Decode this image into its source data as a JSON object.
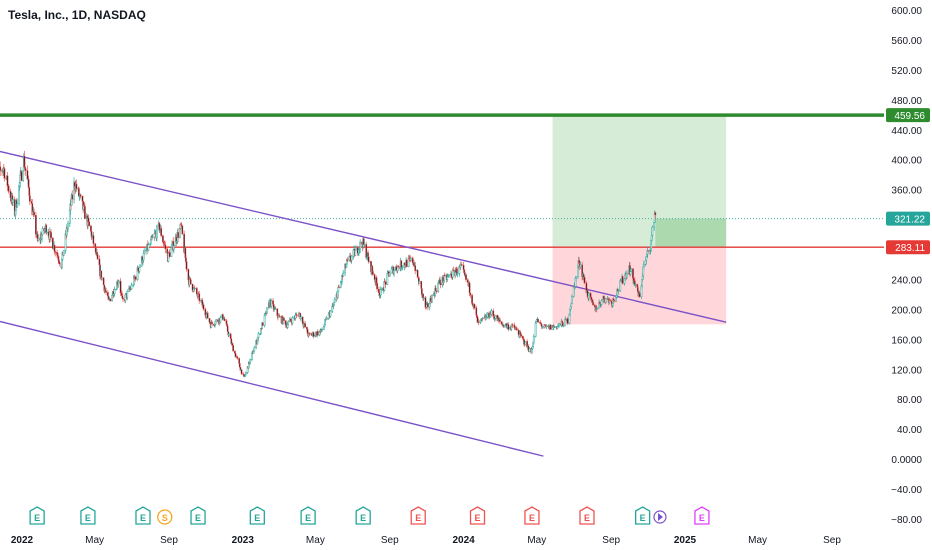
{
  "header": {
    "symbol_title": "Tesla, Inc., 1D, NASDAQ"
  },
  "colors": {
    "up_candle": "#26a69a",
    "down_candle": "#ef5350",
    "candle_body_up": "#ffffff",
    "candle_body_down": "#131722",
    "target_line": "#2e8b2e",
    "entry_line": "#e53935",
    "channel_line": "#7b52c7",
    "profit_zone": "#c8e6c9",
    "profit_zone_strong": "#a5d6a7",
    "loss_zone": "#ffcdd2",
    "earnings_green": "#26a69a",
    "earnings_red": "#ef5350",
    "earnings_magenta": "#e040fb",
    "split_orange": "#f5a623",
    "axis_text": "#131722"
  },
  "chart_data": {
    "type": "candlestick",
    "title": "Tesla, Inc., 1D, NASDAQ",
    "ylim": [
      -80,
      600
    ],
    "y_ticks": [
      "600.00",
      "560.00",
      "520.00",
      "480.00",
      "440.00",
      "400.00",
      "360.00",
      "320.00",
      "280.00",
      "240.00",
      "200.00",
      "160.00",
      "120.00",
      "80.00",
      "40.00",
      "0.0000",
      "−40.00",
      "−80.00"
    ],
    "x_ticks": [
      "2022",
      "May",
      "Sep",
      "2023",
      "May",
      "Sep",
      "2024",
      "May",
      "Sep",
      "2025",
      "May",
      "Sep"
    ],
    "x_tick_dates": [
      "2022-01-01",
      "2022-05-01",
      "2022-09-01",
      "2023-01-01",
      "2023-05-01",
      "2023-09-01",
      "2024-01-01",
      "2024-05-01",
      "2024-09-01",
      "2025-01-01",
      "2025-05-01",
      "2025-09-01"
    ],
    "xlim": [
      "2021-11-15",
      "2025-11-01"
    ],
    "price_anchors": [
      [
        "2021-11-15",
        370
      ],
      [
        "2021-12-01",
        390
      ],
      [
        "2021-12-20",
        330
      ],
      [
        "2022-01-04",
        400
      ],
      [
        "2022-01-27",
        290
      ],
      [
        "2022-02-10",
        310
      ],
      [
        "2022-03-07",
        260
      ],
      [
        "2022-03-29",
        370
      ],
      [
        "2022-04-26",
        300
      ],
      [
        "2022-05-10",
        250
      ],
      [
        "2022-05-24",
        210
      ],
      [
        "2022-06-10",
        240
      ],
      [
        "2022-06-16",
        210
      ],
      [
        "2022-07-01",
        230
      ],
      [
        "2022-07-20",
        270
      ],
      [
        "2022-08-16",
        310
      ],
      [
        "2022-08-30",
        270
      ],
      [
        "2022-09-21",
        310
      ],
      [
        "2022-10-03",
        240
      ],
      [
        "2022-10-24",
        210
      ],
      [
        "2022-11-09",
        180
      ],
      [
        "2022-11-30",
        190
      ],
      [
        "2022-12-15",
        150
      ],
      [
        "2023-01-03",
        108
      ],
      [
        "2023-01-25",
        160
      ],
      [
        "2023-02-15",
        210
      ],
      [
        "2023-03-01",
        190
      ],
      [
        "2023-03-15",
        180
      ],
      [
        "2023-04-04",
        195
      ],
      [
        "2023-04-20",
        165
      ],
      [
        "2023-05-10",
        170
      ],
      [
        "2023-05-31",
        205
      ],
      [
        "2023-06-21",
        260
      ],
      [
        "2023-07-18",
        290
      ],
      [
        "2023-08-16",
        220
      ],
      [
        "2023-09-01",
        250
      ],
      [
        "2023-09-20",
        260
      ],
      [
        "2023-10-10",
        265
      ],
      [
        "2023-10-31",
        200
      ],
      [
        "2023-11-21",
        235
      ],
      [
        "2023-12-28",
        255
      ],
      [
        "2024-01-10",
        230
      ],
      [
        "2024-01-25",
        180
      ],
      [
        "2024-02-15",
        195
      ],
      [
        "2024-03-05",
        180
      ],
      [
        "2024-03-26",
        175
      ],
      [
        "2024-04-22",
        142
      ],
      [
        "2024-04-30",
        185
      ],
      [
        "2024-05-15",
        175
      ],
      [
        "2024-06-06",
        178
      ],
      [
        "2024-06-21",
        185
      ],
      [
        "2024-07-10",
        265
      ],
      [
        "2024-07-24",
        220
      ],
      [
        "2024-08-05",
        200
      ],
      [
        "2024-08-20",
        215
      ],
      [
        "2024-09-03",
        210
      ],
      [
        "2024-09-20",
        240
      ],
      [
        "2024-10-01",
        255
      ],
      [
        "2024-10-10",
        235
      ],
      [
        "2024-10-18",
        215
      ],
      [
        "2024-10-24",
        255
      ],
      [
        "2024-11-06",
        290
      ],
      [
        "2024-11-12",
        330
      ],
      [
        "2024-11-14",
        321.22
      ]
    ],
    "horizontal_lines": [
      {
        "label": "459.56",
        "y": 459.56,
        "color_key": "target_line"
      },
      {
        "label": "283.11",
        "y": 283.11,
        "color_key": "entry_line"
      },
      {
        "label": "321.22",
        "y": 321.22,
        "color_key": "up_candle"
      }
    ],
    "channel_lines": [
      {
        "from": [
          "2021-11-15",
          413
        ],
        "to": [
          "2025-03-10",
          183
        ]
      },
      {
        "from": [
          "2021-11-15",
          186
        ],
        "to": [
          "2024-05-12",
          4
        ]
      }
    ],
    "position_tool": {
      "start": "2024-05-27",
      "end": "2025-03-10",
      "entry": 283.11,
      "target": 459.56,
      "stop": 180,
      "current": 321.22
    },
    "events": [
      {
        "date": "2022-01-26",
        "letter": "E",
        "kind": "earnings_green"
      },
      {
        "date": "2022-04-20",
        "letter": "E",
        "kind": "earnings_green"
      },
      {
        "date": "2022-07-20",
        "letter": "E",
        "kind": "earnings_green"
      },
      {
        "date": "2022-08-25",
        "letter": "S",
        "kind": "split_orange"
      },
      {
        "date": "2022-10-19",
        "letter": "E",
        "kind": "earnings_green"
      },
      {
        "date": "2023-01-25",
        "letter": "E",
        "kind": "earnings_green"
      },
      {
        "date": "2023-04-19",
        "letter": "E",
        "kind": "earnings_green"
      },
      {
        "date": "2023-07-19",
        "letter": "E",
        "kind": "earnings_green"
      },
      {
        "date": "2023-10-18",
        "letter": "E",
        "kind": "earnings_red"
      },
      {
        "date": "2024-01-24",
        "letter": "E",
        "kind": "earnings_red"
      },
      {
        "date": "2024-04-23",
        "letter": "E",
        "kind": "earnings_red"
      },
      {
        "date": "2024-07-23",
        "letter": "E",
        "kind": "earnings_red"
      },
      {
        "date": "2024-10-23",
        "letter": "E",
        "kind": "earnings_green"
      },
      {
        "date": "2025-01-29",
        "letter": "E",
        "kind": "earnings_magenta"
      }
    ],
    "grid": false,
    "legend": "none"
  }
}
